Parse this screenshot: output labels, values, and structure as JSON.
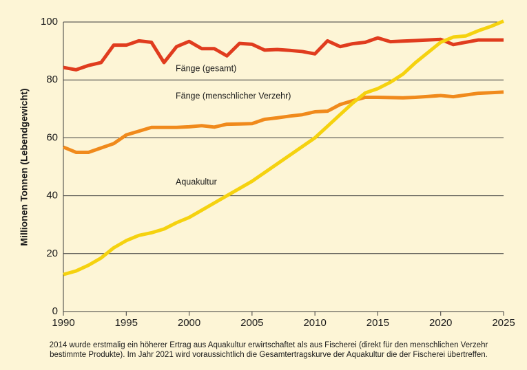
{
  "chart_data": {
    "type": "line",
    "y_label": "Millionen Tonnen (Lebendgewicht)",
    "x": [
      1990,
      1991,
      1992,
      1993,
      1994,
      1995,
      1996,
      1997,
      1998,
      1999,
      2000,
      2001,
      2002,
      2003,
      2004,
      2005,
      2006,
      2007,
      2008,
      2009,
      2010,
      2011,
      2012,
      2013,
      2014,
      2015,
      2016,
      2017,
      2018,
      2019,
      2020,
      2021,
      2022,
      2023,
      2024,
      2025
    ],
    "series": [
      {
        "name": "Fänge (gesamt)",
        "color": "#e03c1e",
        "values": [
          84.3,
          83.5,
          85,
          86,
          92,
          92,
          93.5,
          93,
          86,
          91.5,
          93.3,
          90.8,
          90.8,
          88.3,
          92.6,
          92.3,
          90.3,
          90.5,
          90.2,
          89.8,
          89,
          93.5,
          91.5,
          92.5,
          93,
          94.5,
          93.2,
          93.4,
          93.6,
          93.8,
          94,
          92.2,
          93,
          93.8,
          93.8,
          93.8
        ]
      },
      {
        "name": "Fänge (menschlicher Verzehr)",
        "color": "#f08a1c",
        "values": [
          56.8,
          55,
          55,
          56.5,
          58,
          61,
          62.3,
          63.6,
          63.6,
          63.6,
          63.8,
          64.2,
          63.7,
          64.7,
          64.8,
          64.9,
          66.4,
          66.9,
          67.5,
          68,
          69,
          69.2,
          71.5,
          72.8,
          74,
          74,
          73.9,
          73.8,
          74,
          74.3,
          74.6,
          74.2,
          74.8,
          75.4,
          75.6,
          75.8
        ]
      },
      {
        "name": "Aquakultur",
        "color": "#f5d20f",
        "values": [
          12.8,
          14,
          16,
          18.5,
          22,
          24.5,
          26.3,
          27.2,
          28.5,
          30.7,
          32.5,
          35,
          37.5,
          40,
          42.5,
          45,
          48,
          51,
          54,
          57,
          60,
          64,
          68,
          72,
          75.5,
          77,
          79.2,
          82,
          86,
          89.5,
          93,
          94.8,
          95.2,
          97,
          98.5,
          100.3
        ]
      }
    ],
    "xlim": [
      1990,
      2025
    ],
    "xticks": [
      1990,
      1995,
      2000,
      2005,
      2010,
      2015,
      2020,
      2025
    ],
    "ylim": [
      0,
      100
    ],
    "yticks": [
      0,
      20,
      40,
      60,
      80,
      100
    ],
    "grid": true,
    "caption": [
      "2014 wurde erstmalig ein höherer Ertrag aus Aquakultur erwirtschaftet als aus Fischerei (direkt für den menschlichen Verzehr",
      "bestimmte Produkte). Im Jahr 2021 wird voraussichtlich die Gesamtertragskurve der Aquakultur die der Fischerei übertreffen."
    ]
  }
}
